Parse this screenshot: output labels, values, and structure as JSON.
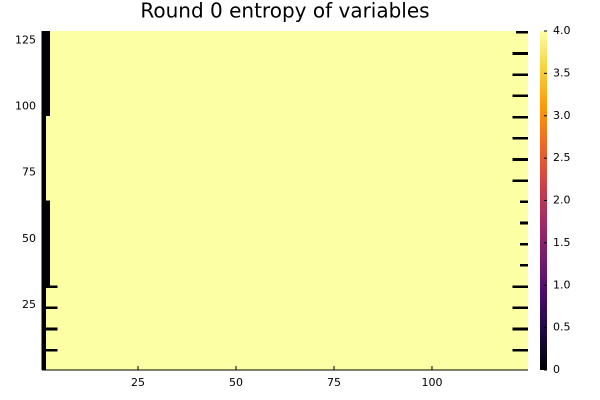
{
  "chart_data": {
    "type": "heatmap",
    "title": "Round 0 entropy of variables",
    "xlim": [
      0.5,
      124.5
    ],
    "ylim": [
      0.5,
      128.5
    ],
    "xticks": [
      25,
      50,
      75,
      100
    ],
    "yticks": [
      25,
      50,
      75,
      100,
      125
    ],
    "clim": [
      0,
      4
    ],
    "cticks": [
      0,
      0.5,
      {
        "value": 1,
        "label": "1.0"
      },
      1.5,
      {
        "value": 2,
        "label": "2.0"
      },
      2.5,
      {
        "value": 3,
        "label": "3.0"
      },
      3.5,
      {
        "value": 4,
        "label": "4.0"
      }
    ],
    "colormap": [
      "#000004",
      "#1b0c41",
      "#4a0c6b",
      "#781c6d",
      "#a52c60",
      "#cf4446",
      "#ed6925",
      "#fb9b06",
      "#f7d13d",
      "#fcffa4"
    ],
    "blocks": [
      {
        "x": [
          1,
          124
        ],
        "y": [
          1,
          128
        ],
        "value": 4
      },
      {
        "x": [
          1,
          1
        ],
        "y": [
          1,
          32
        ],
        "value": 0
      },
      {
        "x": [
          1,
          2
        ],
        "y": [
          33,
          64
        ],
        "value": 0
      },
      {
        "x": [
          1,
          1
        ],
        "y": [
          65,
          96
        ],
        "value": 0
      },
      {
        "x": [
          1,
          2
        ],
        "y": [
          97,
          128
        ],
        "value": 0
      },
      {
        "x": [
          1,
          4
        ],
        "y": [
          8,
          8
        ],
        "value": 0
      },
      {
        "x": [
          1,
          4
        ],
        "y": [
          16,
          16
        ],
        "value": 0
      },
      {
        "x": [
          1,
          4
        ],
        "y": [
          24,
          24
        ],
        "value": 0
      },
      {
        "x": [
          1,
          4
        ],
        "y": [
          32,
          32
        ],
        "value": 0
      },
      {
        "x": [
          121,
          124
        ],
        "y": [
          8,
          8
        ],
        "value": 0
      },
      {
        "x": [
          121,
          124
        ],
        "y": [
          16,
          16
        ],
        "value": 0
      },
      {
        "x": [
          121,
          124
        ],
        "y": [
          24,
          24
        ],
        "value": 0
      },
      {
        "x": [
          121,
          124
        ],
        "y": [
          32,
          32
        ],
        "value": 0
      },
      {
        "x": [
          123,
          124
        ],
        "y": [
          40,
          40
        ],
        "value": 0
      },
      {
        "x": [
          123,
          124
        ],
        "y": [
          48,
          48
        ],
        "value": 0
      },
      {
        "x": [
          123,
          124
        ],
        "y": [
          56,
          56
        ],
        "value": 0
      },
      {
        "x": [
          123,
          124
        ],
        "y": [
          64,
          64
        ],
        "value": 0
      },
      {
        "x": [
          121,
          124
        ],
        "y": [
          72,
          72
        ],
        "value": 0
      },
      {
        "x": [
          121,
          124
        ],
        "y": [
          80,
          80
        ],
        "value": 0
      },
      {
        "x": [
          121,
          124
        ],
        "y": [
          88,
          88
        ],
        "value": 0
      },
      {
        "x": [
          121,
          124
        ],
        "y": [
          96,
          96
        ],
        "value": 0
      },
      {
        "x": [
          121,
          124
        ],
        "y": [
          104,
          104
        ],
        "value": 0
      },
      {
        "x": [
          121,
          124
        ],
        "y": [
          112,
          112
        ],
        "value": 0
      },
      {
        "x": [
          121,
          124
        ],
        "y": [
          120,
          120
        ],
        "value": 0
      },
      {
        "x": [
          122,
          124
        ],
        "y": [
          128,
          128
        ],
        "value": 0
      }
    ]
  }
}
